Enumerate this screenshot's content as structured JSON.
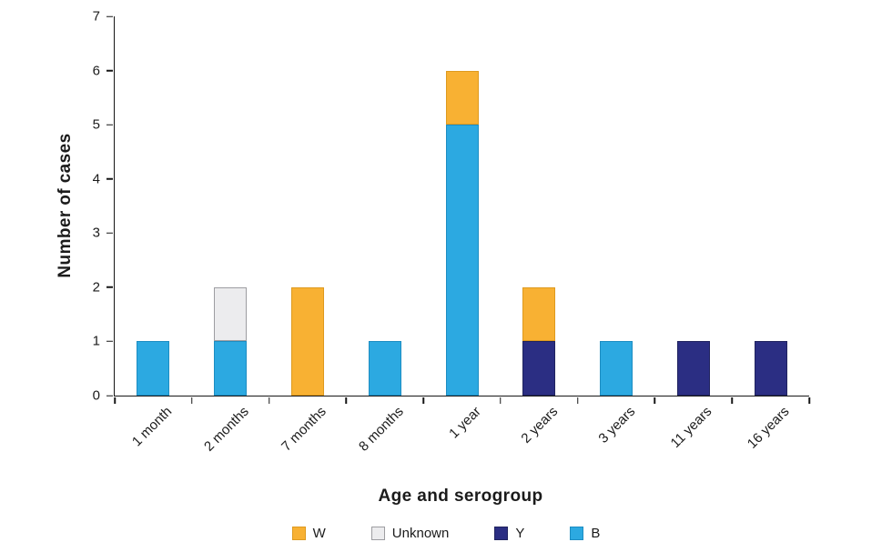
{
  "chart_data": {
    "type": "bar",
    "stacked": true,
    "title": "",
    "xlabel": "Age and serogroup",
    "ylabel": "Number of cases",
    "ylim": [
      0,
      7
    ],
    "yticks": [
      0,
      1,
      2,
      3,
      4,
      5,
      6,
      7
    ],
    "categories": [
      "1 month",
      "2 months",
      "7 months",
      "8 months",
      "1 year",
      "2 years",
      "3 years",
      "11 years",
      "16 years"
    ],
    "series": [
      {
        "name": "W",
        "color": "#F8B133",
        "border": "#DE9A1F",
        "values": [
          0,
          0,
          2,
          0,
          1,
          1,
          0,
          0,
          0
        ]
      },
      {
        "name": "Unknown",
        "color": "#ECECEE",
        "border": "#9D9DA1",
        "values": [
          0,
          1,
          0,
          0,
          0,
          0,
          0,
          0,
          0
        ]
      },
      {
        "name": "Y",
        "color": "#2B2E83",
        "border": "#20235F",
        "values": [
          0,
          0,
          0,
          0,
          0,
          1,
          0,
          1,
          1
        ]
      },
      {
        "name": "B",
        "color": "#2CA9E1",
        "border": "#1D8DC2",
        "values": [
          1,
          1,
          0,
          1,
          5,
          0,
          1,
          0,
          0
        ]
      }
    ],
    "stack_order_bottom_to_top": [
      "B",
      "Y",
      "Unknown",
      "W"
    ],
    "legend": [
      "W",
      "Unknown",
      "Y",
      "B"
    ],
    "legend_position": "bottom",
    "grid": false
  }
}
